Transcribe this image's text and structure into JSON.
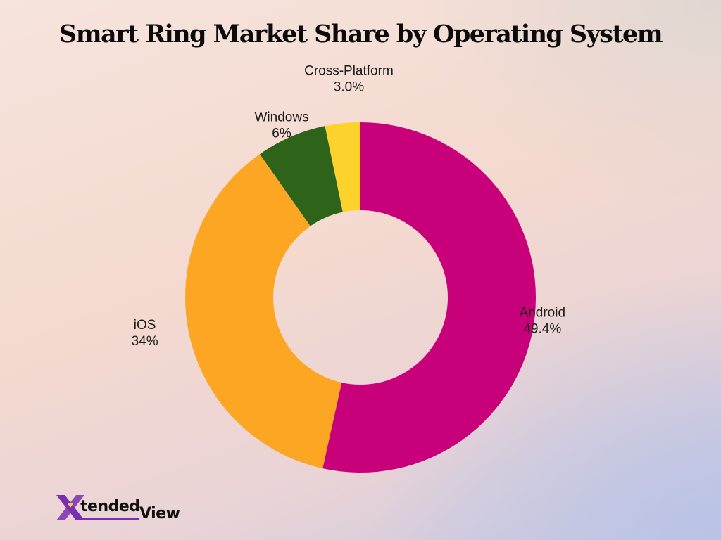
{
  "title": "Smart Ring Market Share by Operating System",
  "chart_data": {
    "type": "pie",
    "donut": true,
    "title": "Smart Ring Market Share by Operating System",
    "categories": [
      "Android",
      "iOS",
      "Windows",
      "Cross-Platform"
    ],
    "values": [
      49.4,
      34,
      6,
      3.0
    ],
    "value_labels": [
      "49.4%",
      "34%",
      "6%",
      "3.0%"
    ],
    "colors": [
      "#c8007a",
      "#fca624",
      "#2e641a",
      "#fdd22c"
    ]
  },
  "logo": {
    "mark": "X",
    "part1": "tended",
    "part2": "View",
    "mark_color": "#7a2fb0"
  }
}
